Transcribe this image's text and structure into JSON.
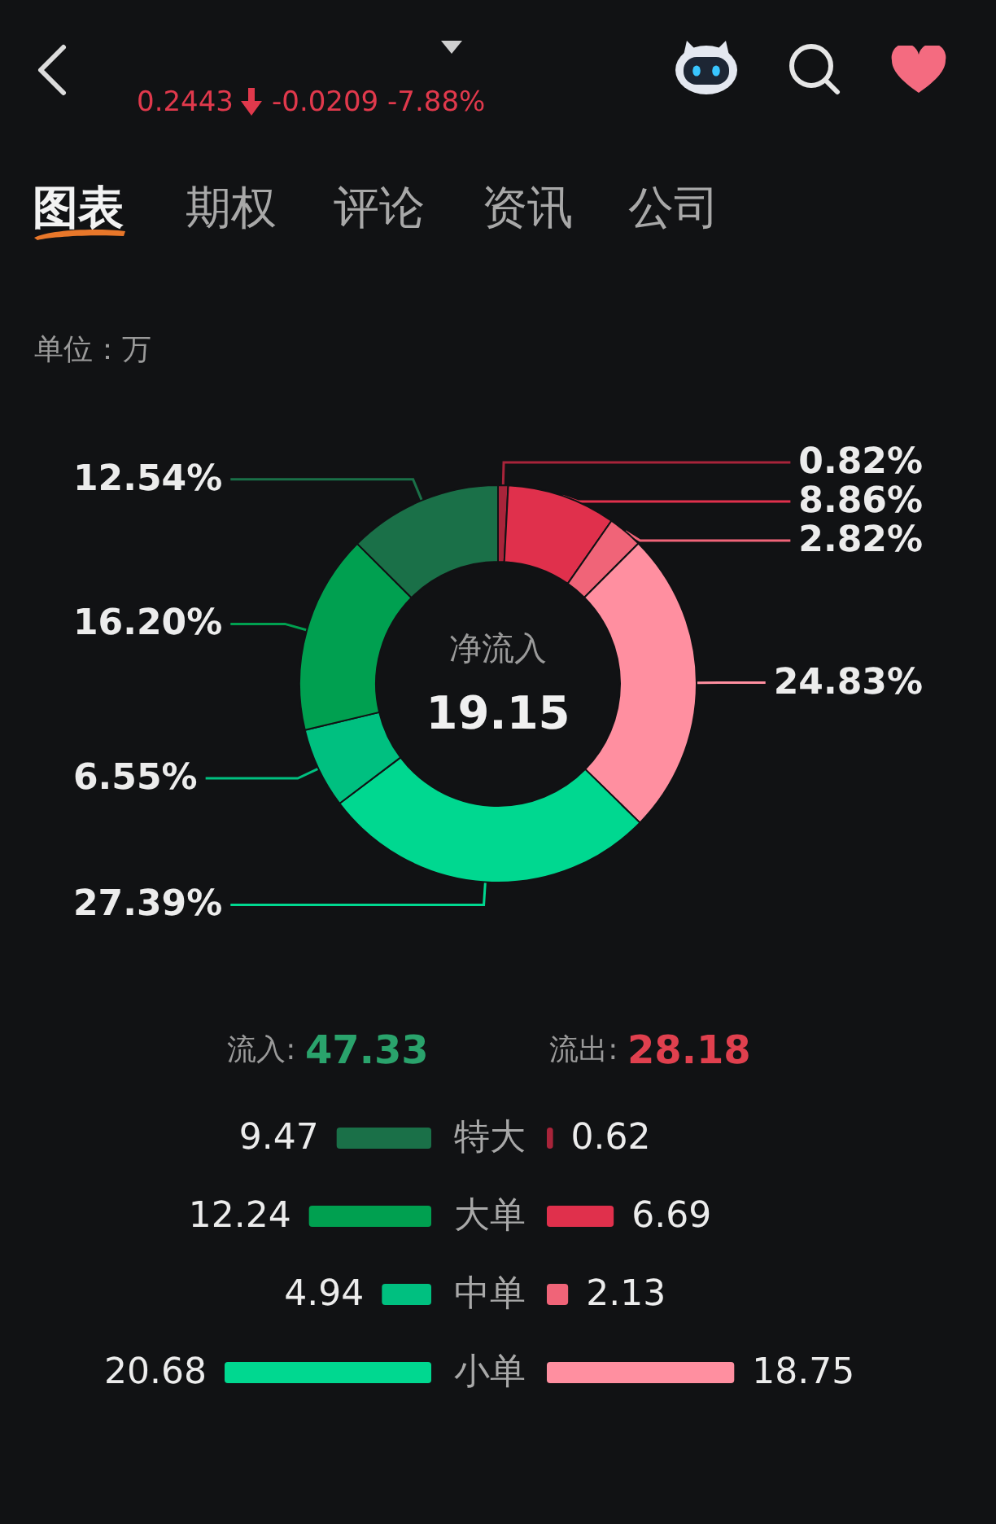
{
  "chart_data": [
    {
      "type": "other",
      "annotations": [
        "0.2443",
        "-0.0209 -7.88%",
        "图表",
        "期权",
        "评论",
        "资讯",
        "公司"
      ]
    },
    {
      "type": "donut",
      "annotations": [
        "单位：万",
        "净流入",
        "19.15"
      ],
      "categories": [
        null,
        null,
        null,
        null,
        null,
        null,
        null,
        null
      ],
      "values": [
        0.82,
        8.86,
        2.82,
        24.83,
        27.39,
        6.55,
        16.2,
        12.54
      ],
      "colors": [
        "#a8243a",
        "#e0304c",
        "#f06478",
        "#ff8fa0",
        "#00d890",
        "#00c080",
        "#00a050",
        "#1a7048"
      ],
      "value_labels": [
        "0.82%",
        "8.86%",
        "2.82%",
        "24.83%",
        "27.39%",
        "6.55%",
        "16.20%",
        "12.54%"
      ]
    },
    {
      "type": "bar",
      "orientation": "horizontal",
      "categories": [
        "特大",
        "大单",
        "中单",
        "小单"
      ],
      "tick_labels": false,
      "color": "#2aa36c",
      "colors": [
        "#1a7048",
        "#00a050",
        "#00c080",
        "#00d890"
      ],
      "values": [
        9.47,
        12.24,
        4.94,
        20.68
      ],
      "data_labels": true,
      "annotations": [
        "流入: 47.33"
      ]
    },
    {
      "type": "bar",
      "orientation": "horizontal",
      "categories": [
        "特大",
        "大单",
        "中单",
        "小单"
      ],
      "color": "#e0404e",
      "colors": [
        "#a8243a",
        "#e0304c",
        "#f06478",
        "#ff8fa0"
      ],
      "values": [
        0.62,
        6.69,
        2.13,
        18.75
      ],
      "data_labels": true,
      "annotations": [
        "流出: 28.18"
      ]
    }
  ]
}
